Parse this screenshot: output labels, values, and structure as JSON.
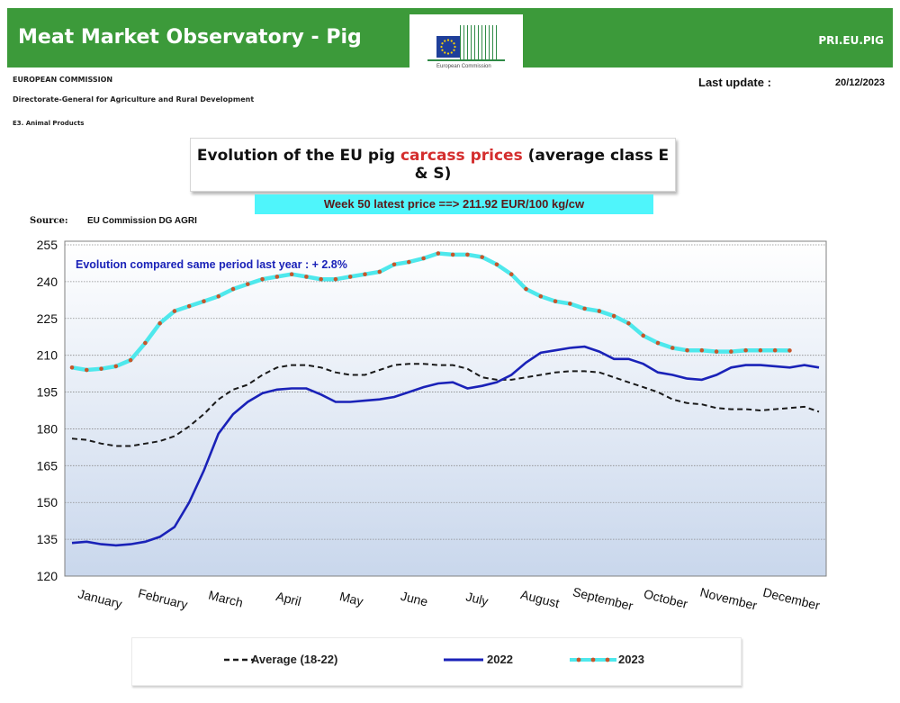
{
  "header": {
    "title": "Meat Market Observatory - Pig",
    "site": "PRI.EU.PIG",
    "logo_caption": "European Commission",
    "organization": "EUROPEAN COMMISSION",
    "directorate": "Directorate-General for Agriculture and Rural Development",
    "unit": "E3. Animal Products",
    "last_update_label": "Last update :",
    "last_update_value": "20/12/2023"
  },
  "colors": {
    "header_green": "#3c9a3a",
    "series_2022": "#1a22b8",
    "series_2023": "#4ee8ec",
    "series_2023_marker": "#c8552a",
    "average": "#1a1a1a",
    "highlight": "#d42e2e",
    "latest_bg": "#4ff5fb"
  },
  "chart_data": {
    "type": "line",
    "title": "Evolution of the EU pig carcass prices (average class E & S)",
    "title_highlight": "carcass prices",
    "latest_price_text": "Week 50 latest price ==>  211.92 EUR/100 kg/cw",
    "source_label": "Source:",
    "source_value": "EU Commission DG AGRI",
    "annotation": "Evolution compared same period last year   : + 2.8%",
    "ylim": [
      120,
      255
    ],
    "yticks": [
      120,
      135,
      150,
      165,
      180,
      195,
      210,
      225,
      240,
      255
    ],
    "xlim": [
      1,
      52
    ],
    "categories": [
      "January",
      "February",
      "March",
      "April",
      "May",
      "June",
      "July",
      "August",
      "September",
      "October",
      "November",
      "December"
    ],
    "grid": true,
    "legend_position": "bottom",
    "series": [
      {
        "name": "Average (18-22)",
        "style": "dashed",
        "x": [
          1,
          2,
          3,
          4,
          5,
          6,
          7,
          8,
          9,
          10,
          11,
          12,
          13,
          14,
          15,
          16,
          17,
          18,
          19,
          20,
          21,
          22,
          23,
          24,
          25,
          26,
          27,
          28,
          29,
          30,
          31,
          32,
          33,
          34,
          35,
          36,
          37,
          38,
          39,
          40,
          41,
          42,
          43,
          44,
          45,
          46,
          47,
          48,
          49,
          50,
          51,
          52
        ],
        "values": [
          176,
          175.5,
          174,
          173,
          173,
          174,
          175,
          177,
          181,
          186,
          192,
          196,
          198,
          202,
          205,
          206,
          206,
          205,
          203,
          202,
          202,
          204,
          206,
          206.5,
          206.5,
          206,
          206,
          204.5,
          201,
          200,
          200,
          201,
          202,
          203,
          203.5,
          203.5,
          203,
          201,
          199,
          197,
          195,
          192,
          190.5,
          190,
          188.5,
          188,
          188,
          187.5,
          188,
          188.5,
          189,
          187
        ]
      },
      {
        "name": "2022",
        "style": "solid",
        "x": [
          1,
          2,
          3,
          4,
          5,
          6,
          7,
          8,
          9,
          10,
          11,
          12,
          13,
          14,
          15,
          16,
          17,
          18,
          19,
          20,
          21,
          22,
          23,
          24,
          25,
          26,
          27,
          28,
          29,
          30,
          31,
          32,
          33,
          34,
          35,
          36,
          37,
          38,
          39,
          40,
          41,
          42,
          43,
          44,
          45,
          46,
          47,
          48,
          49,
          50,
          51,
          52
        ],
        "values": [
          133.5,
          134,
          133,
          132.5,
          133,
          134,
          136,
          140,
          150,
          163,
          178,
          186,
          191,
          194.5,
          196,
          196.5,
          196.5,
          194,
          191,
          191,
          191.5,
          192,
          193,
          195,
          197,
          198.5,
          199,
          196.5,
          197.5,
          199,
          202,
          207,
          211,
          212,
          213,
          213.5,
          211.5,
          208.5,
          208.5,
          206.5,
          203,
          202,
          200.5,
          200,
          202,
          205,
          206,
          206,
          205.5,
          205,
          206,
          205
        ]
      },
      {
        "name": "2023",
        "style": "solid-marked",
        "x": [
          1,
          2,
          3,
          4,
          5,
          6,
          7,
          8,
          9,
          10,
          11,
          12,
          13,
          14,
          15,
          16,
          17,
          18,
          19,
          20,
          21,
          22,
          23,
          24,
          25,
          26,
          27,
          28,
          29,
          30,
          31,
          32,
          33,
          34,
          35,
          36,
          37,
          38,
          39,
          40,
          41,
          42,
          43,
          44,
          45,
          46,
          47,
          48,
          49,
          50
        ],
        "values": [
          205,
          204,
          204.5,
          205.5,
          208,
          215,
          223,
          228,
          230,
          232,
          234,
          237,
          239,
          241,
          242,
          243,
          242,
          241,
          241,
          242,
          243,
          244,
          247,
          248,
          249.5,
          251.5,
          251,
          251,
          250,
          247,
          243,
          237,
          234,
          232,
          231,
          229,
          228,
          226,
          223,
          218,
          215,
          213,
          212,
          212,
          211.5,
          211.5,
          212,
          212,
          212,
          211.92
        ]
      }
    ]
  }
}
